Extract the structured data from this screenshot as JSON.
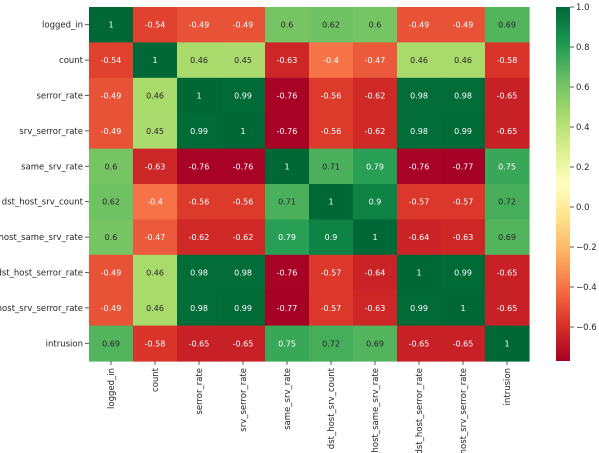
{
  "chart_data": {
    "type": "heatmap",
    "title": "",
    "xlabel": "",
    "ylabel": "",
    "labels": [
      "logged_in",
      "count",
      "serror_rate",
      "srv_serror_rate",
      "same_srv_rate",
      "dst_host_srv_count",
      "dst_host_same_srv_rate",
      "dst_host_serror_rate",
      "dst_host_srv_serror_rate",
      "intrusion"
    ],
    "matrix": [
      [
        1,
        -0.54,
        -0.49,
        -0.49,
        0.6,
        0.62,
        0.6,
        -0.49,
        -0.49,
        0.69
      ],
      [
        -0.54,
        1,
        0.46,
        0.45,
        -0.63,
        -0.4,
        -0.47,
        0.46,
        0.46,
        -0.58
      ],
      [
        -0.49,
        0.46,
        1,
        0.99,
        -0.76,
        -0.56,
        -0.62,
        0.98,
        0.98,
        -0.65
      ],
      [
        -0.49,
        0.45,
        0.99,
        1,
        -0.76,
        -0.56,
        -0.62,
        0.98,
        0.99,
        -0.65
      ],
      [
        0.6,
        -0.63,
        -0.76,
        -0.76,
        1,
        0.71,
        0.79,
        -0.76,
        -0.77,
        0.75
      ],
      [
        0.62,
        -0.4,
        -0.56,
        -0.56,
        0.71,
        1,
        0.9,
        -0.57,
        -0.57,
        0.72
      ],
      [
        0.6,
        -0.47,
        -0.62,
        -0.62,
        0.79,
        0.9,
        1,
        -0.64,
        -0.63,
        0.69
      ],
      [
        -0.49,
        0.46,
        0.98,
        0.98,
        -0.76,
        -0.57,
        -0.64,
        1,
        0.99,
        -0.65
      ],
      [
        -0.49,
        0.46,
        0.98,
        0.99,
        -0.77,
        -0.57,
        -0.63,
        0.99,
        1,
        -0.65
      ],
      [
        0.69,
        -0.58,
        -0.65,
        -0.65,
        0.75,
        0.72,
        0.69,
        -0.65,
        -0.65,
        1
      ]
    ],
    "colormap": "RdYlGn",
    "vmin": -0.77,
    "vmax": 1.0,
    "colorbar": {
      "ticks": [
        1.0,
        0.8,
        0.6,
        0.4,
        0.2,
        0.0,
        -0.2,
        -0.4,
        -0.6
      ],
      "tick_labels": [
        "1.0",
        "0.8",
        "0.6",
        "0.4",
        "0.2",
        "0.0",
        "−0.2",
        "−0.4",
        "−0.6"
      ]
    },
    "annotations": true,
    "grid": false,
    "legend": "colorbar-right"
  }
}
